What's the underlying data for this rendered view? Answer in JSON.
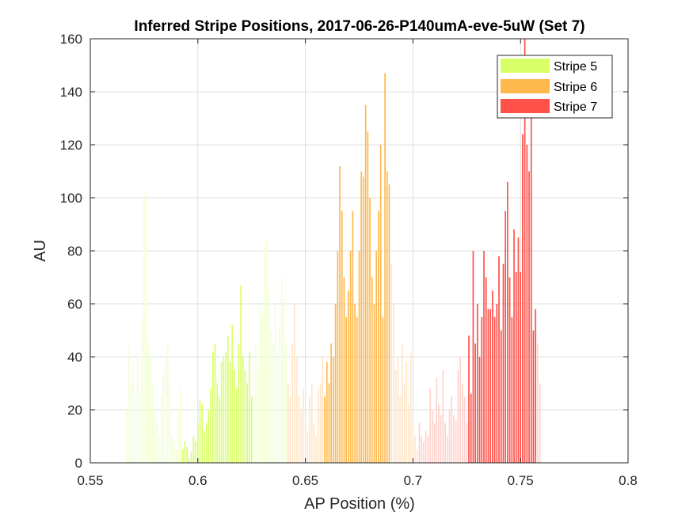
{
  "chart_data": {
    "type": "bar",
    "title": "Inferred Stripe Positions, 2017-06-26-P140umA-eve-5uW (Set 7)",
    "xlabel": "AP Position (%)",
    "ylabel": "AU",
    "xlim": [
      0.55,
      0.8
    ],
    "ylim": [
      0,
      160
    ],
    "xticks": [
      "0.55",
      "0.6",
      "0.65",
      "0.7",
      "0.75",
      "0.8"
    ],
    "yticks": [
      "0",
      "20",
      "40",
      "60",
      "80",
      "100",
      "120",
      "140",
      "160"
    ],
    "grid": true,
    "legend_position": "top-right",
    "series": [
      {
        "name": "Stripe 5",
        "color": "#d9ff66",
        "faint_color": "#f3ffd6",
        "core": [
          0.593,
          0.625
        ],
        "x": [
          0.567,
          0.568,
          0.569,
          0.57,
          0.571,
          0.572,
          0.573,
          0.574,
          0.575,
          0.576,
          0.577,
          0.578,
          0.579,
          0.58,
          0.581,
          0.582,
          0.583,
          0.584,
          0.585,
          0.586,
          0.587,
          0.588,
          0.589,
          0.59,
          0.591,
          0.592,
          0.593,
          0.594,
          0.595,
          0.596,
          0.597,
          0.598,
          0.599,
          0.6,
          0.601,
          0.602,
          0.603,
          0.604,
          0.605,
          0.606,
          0.607,
          0.608,
          0.609,
          0.61,
          0.611,
          0.612,
          0.613,
          0.614,
          0.615,
          0.616,
          0.617,
          0.618,
          0.619,
          0.62,
          0.621,
          0.622,
          0.623,
          0.624,
          0.625,
          0.626,
          0.627,
          0.628,
          0.629,
          0.63,
          0.631,
          0.632,
          0.633,
          0.634,
          0.635,
          0.636,
          0.637,
          0.638,
          0.639,
          0.64,
          0.641
        ],
        "values": [
          20,
          44,
          30,
          38,
          25,
          42,
          28,
          55,
          100,
          102,
          45,
          40,
          30,
          20,
          15,
          10,
          25,
          35,
          40,
          45,
          30,
          10,
          8,
          5,
          20,
          28,
          5,
          8,
          6,
          2,
          4,
          10,
          8,
          15,
          24,
          22,
          12,
          15,
          20,
          28,
          42,
          45,
          30,
          25,
          38,
          40,
          42,
          48,
          38,
          52,
          35,
          28,
          45,
          67,
          40,
          35,
          30,
          42,
          25,
          38,
          45,
          35,
          60,
          55,
          82,
          84,
          65,
          50,
          45,
          60,
          40,
          52,
          70,
          62,
          45
        ]
      },
      {
        "name": "Stripe 6",
        "color": "#ffb84d",
        "faint_color": "#ffe6c9",
        "core": [
          0.659,
          0.689
        ],
        "x": [
          0.642,
          0.643,
          0.644,
          0.645,
          0.646,
          0.647,
          0.648,
          0.649,
          0.65,
          0.651,
          0.652,
          0.653,
          0.654,
          0.655,
          0.656,
          0.657,
          0.658,
          0.659,
          0.66,
          0.661,
          0.662,
          0.663,
          0.664,
          0.665,
          0.666,
          0.667,
          0.668,
          0.669,
          0.67,
          0.671,
          0.672,
          0.673,
          0.674,
          0.675,
          0.676,
          0.677,
          0.678,
          0.679,
          0.68,
          0.681,
          0.682,
          0.683,
          0.684,
          0.685,
          0.686,
          0.687,
          0.688,
          0.689,
          0.69,
          0.691,
          0.692,
          0.693,
          0.694,
          0.695,
          0.696,
          0.697,
          0.698,
          0.699,
          0.7,
          0.701,
          0.702
        ],
        "values": [
          30,
          25,
          45,
          60,
          40,
          25,
          20,
          28,
          20,
          12,
          25,
          30,
          15,
          10,
          28,
          30,
          40,
          25,
          38,
          30,
          45,
          40,
          60,
          80,
          112,
          95,
          70,
          55,
          65,
          80,
          95,
          60,
          55,
          80,
          110,
          108,
          135,
          125,
          100,
          70,
          60,
          80,
          95,
          120,
          55,
          147,
          110,
          105,
          75,
          60,
          35,
          40,
          25,
          45,
          30,
          38,
          22,
          42,
          15,
          10,
          5
        ]
      },
      {
        "name": "Stripe 7",
        "color": "#ff5148",
        "faint_color": "#ffd2cd",
        "core": [
          0.726,
          0.757
        ],
        "x": [
          0.703,
          0.704,
          0.705,
          0.706,
          0.707,
          0.708,
          0.709,
          0.71,
          0.711,
          0.712,
          0.713,
          0.714,
          0.715,
          0.716,
          0.717,
          0.718,
          0.719,
          0.72,
          0.721,
          0.722,
          0.723,
          0.724,
          0.725,
          0.726,
          0.727,
          0.728,
          0.729,
          0.73,
          0.731,
          0.732,
          0.733,
          0.734,
          0.735,
          0.736,
          0.737,
          0.738,
          0.739,
          0.74,
          0.741,
          0.742,
          0.743,
          0.744,
          0.745,
          0.746,
          0.747,
          0.748,
          0.749,
          0.75,
          0.751,
          0.752,
          0.753,
          0.754,
          0.755,
          0.756,
          0.757,
          0.758,
          0.759
        ],
        "values": [
          15,
          10,
          8,
          12,
          10,
          28,
          20,
          15,
          32,
          22,
          18,
          35,
          15,
          10,
          20,
          25,
          18,
          16,
          35,
          40,
          30,
          25,
          15,
          48,
          26,
          80,
          45,
          60,
          40,
          55,
          80,
          70,
          58,
          58,
          65,
          55,
          60,
          78,
          50,
          75,
          95,
          106,
          70,
          55,
          88,
          72,
          85,
          72,
          124,
          160,
          120,
          110,
          140,
          50,
          58,
          45,
          30
        ]
      }
    ]
  }
}
